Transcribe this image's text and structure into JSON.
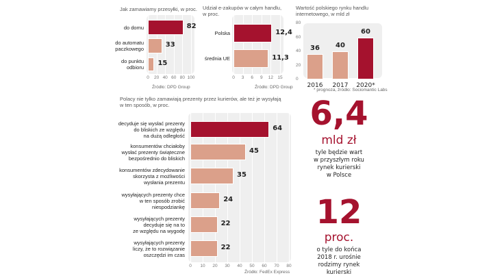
{
  "colors": {
    "dark": "#a5122e",
    "light": "#dba08a",
    "panel": "#efefef"
  },
  "chart_data": [
    {
      "type": "bar",
      "orientation": "horizontal",
      "title": "Jak zamawiamy przesyłki, w proc.",
      "categories": [
        "do domu",
        "do automatu paczkowego",
        "do punktu odbioru"
      ],
      "category_lines": [
        [
          "do domu"
        ],
        [
          "do automatu",
          "paczkowego"
        ],
        [
          "do punktu",
          "odbioru"
        ]
      ],
      "values": [
        82,
        33,
        15
      ],
      "value_labels": [
        "82",
        "33",
        "15"
      ],
      "highlight": [
        true,
        false,
        false
      ],
      "xlim": [
        0,
        100
      ],
      "xticks": [
        "0",
        "20",
        "40",
        "60",
        "80",
        "100"
      ],
      "source": "Źródło: DPD Group"
    },
    {
      "type": "bar",
      "orientation": "horizontal",
      "title": "Udział e-zakupów w całym handlu, w proc.",
      "title_lines": [
        "Udział e-zakupów w całym handlu,",
        "w proc."
      ],
      "categories": [
        "Polska",
        "średnia UE"
      ],
      "category_lines": [
        [
          "Polska"
        ],
        [
          "średnia UE"
        ]
      ],
      "values": [
        12.4,
        11.3
      ],
      "value_labels": [
        "12,4",
        "11,3"
      ],
      "highlight": [
        true,
        false
      ],
      "xlim": [
        0,
        15
      ],
      "xticks": [
        "0",
        "3",
        "6",
        "9",
        "12",
        "15"
      ],
      "source": "Źródło: DPD Group"
    },
    {
      "type": "bar",
      "orientation": "vertical",
      "title": "Wartość polskiego rynku handlu internetowego, w mld zł",
      "title_lines": [
        "Wartość polskiego rynku handlu",
        "internetowego, w mld zł"
      ],
      "categories": [
        "2016",
        "2017",
        "2020*"
      ],
      "values": [
        36,
        40,
        60
      ],
      "value_labels": [
        "36",
        "40",
        "60"
      ],
      "highlight": [
        false,
        false,
        true
      ],
      "ylim": [
        0,
        80
      ],
      "yticks": [
        "0",
        "20",
        "40",
        "60",
        "80"
      ],
      "source": "* prognoza, źródło: Sociomantic Labs"
    },
    {
      "type": "bar",
      "orientation": "horizontal",
      "title": "Polacy nie tylko zamawiają prezenty przez kurierów, ale też je wysyłają w ten sposób, w proc.",
      "title_lines": [
        "Polacy nie tylko zamawiają prezenty przez kurierów, ale też je wysyłają",
        "w ten sposób, w proc."
      ],
      "categories": [
        "decyduje się wysłać prezenty do bliskich ze względu na dużą odległość",
        "konsumentów chciałoby wysłać prezenty świąteczne bezpośrednio do bliskich",
        "konsumentów zdecydowanie skorzysta z możliwości wysłania prezentu",
        "wysyłających prezenty chce w ten sposób zrobić niespodziankę",
        "wysyłających prezenty decyduje się na to ze względu na wygodę",
        "wysyłających prezenty liczy, że to rozwiązanie oszczędzi im czas"
      ],
      "category_lines": [
        [
          "decyduje się wysłać prezenty",
          "do bliskich ze względu",
          "na dużą odległość"
        ],
        [
          "konsumentów chciałoby",
          "wysłać prezenty świąteczne",
          "bezpośrednio do bliskich"
        ],
        [
          "konsumentów zdecydowanie",
          "skorzysta z możliwości",
          "wysłania prezentu"
        ],
        [
          "wysyłających prezenty chce",
          "w ten sposób zrobić",
          "niespodziankę"
        ],
        [
          "wysyłających prezenty",
          "decyduje się na to",
          "ze względu na wygodę"
        ],
        [
          "wysyłających prezenty",
          "liczy, że to rozwiązanie",
          "oszczędzi im czas"
        ]
      ],
      "values": [
        64,
        45,
        35,
        24,
        22,
        22
      ],
      "value_labels": [
        "64",
        "45",
        "35",
        "24",
        "22",
        "22"
      ],
      "highlight": [
        true,
        false,
        false,
        false,
        false,
        false
      ],
      "xlim": [
        0,
        80
      ],
      "xticks": [
        "0",
        "10",
        "20",
        "30",
        "40",
        "50",
        "60",
        "70",
        "80"
      ],
      "source": "Źródło: FedEx Express"
    }
  ],
  "facts": [
    {
      "number": "6,4",
      "unit": "mld zł",
      "lines": [
        "tyle będzie wart",
        "w przyszłym roku",
        "rynek kurierski",
        "w Polsce"
      ]
    },
    {
      "number": "12",
      "unit": "proc.",
      "lines": [
        "o tyle do końca",
        "2018 r. urośnie",
        "rodzimy rynek",
        "kurierski"
      ]
    }
  ]
}
